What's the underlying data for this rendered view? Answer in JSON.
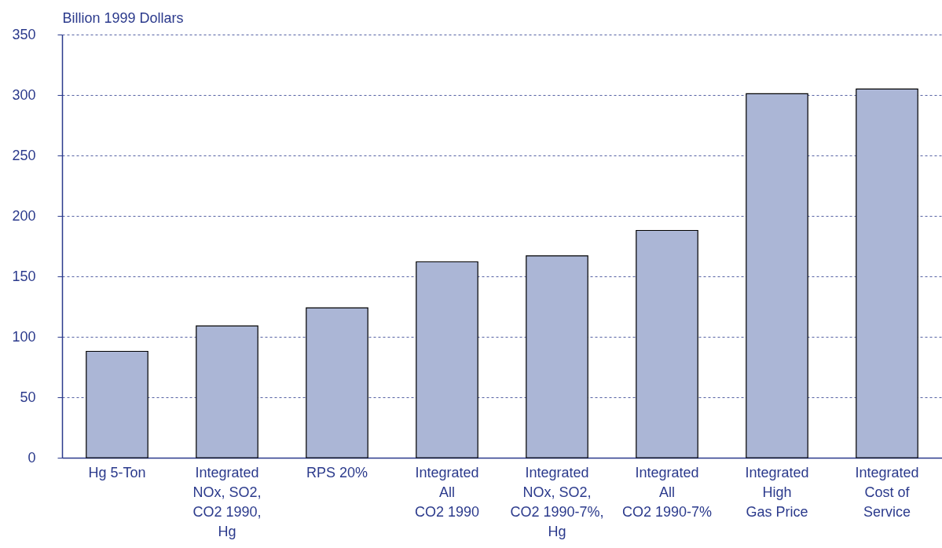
{
  "chart_data": {
    "type": "bar",
    "ylabel": "Billion 1999 Dollars",
    "categories": [
      "Hg 5-Ton",
      "Integrated\nNOx, SO2,\nCO2 1990,\nHg",
      "RPS 20%",
      "Integrated\nAll\nCO2 1990",
      "Integrated\nNOx, SO2,\nCO2 1990-7%,\nHg",
      "Integrated\nAll\nCO2 1990-7%",
      "Integrated\nHigh\nGas Price",
      "Integrated\nCost of\nService"
    ],
    "values": [
      88,
      109,
      124,
      162,
      167,
      188,
      301,
      305
    ],
    "color": "#abb6d6",
    "ylim": [
      0,
      350
    ],
    "yticks": [
      0,
      50,
      100,
      150,
      200,
      250,
      300,
      350
    ],
    "grid": "y"
  }
}
